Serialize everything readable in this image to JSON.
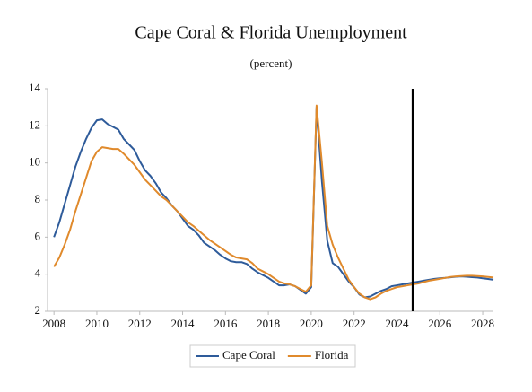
{
  "chart_data": {
    "type": "line",
    "title": "Cape Coral & Florida Unemployment",
    "subtitle": "(percent)",
    "x": [
      2008,
      2008.25,
      2008.5,
      2008.75,
      2009,
      2009.25,
      2009.5,
      2009.75,
      2010,
      2010.25,
      2010.5,
      2010.75,
      2011,
      2011.25,
      2011.5,
      2011.75,
      2012,
      2012.25,
      2012.5,
      2012.75,
      2013,
      2013.25,
      2013.5,
      2013.75,
      2014,
      2014.25,
      2014.5,
      2014.75,
      2015,
      2015.25,
      2015.5,
      2015.75,
      2016,
      2016.25,
      2016.5,
      2016.75,
      2017,
      2017.25,
      2017.5,
      2017.75,
      2018,
      2018.25,
      2018.5,
      2018.75,
      2019,
      2019.25,
      2019.5,
      2019.75,
      2020,
      2020.25,
      2020.5,
      2020.75,
      2021,
      2021.25,
      2021.5,
      2021.75,
      2022,
      2022.25,
      2022.5,
      2022.75,
      2023,
      2023.25,
      2023.5,
      2023.75,
      2024,
      2024.25,
      2024.5,
      2024.75,
      2025,
      2025.25,
      2025.5,
      2025.75,
      2026,
      2026.25,
      2026.5,
      2026.75,
      2027,
      2027.25,
      2027.5,
      2027.75,
      2028,
      2028.25,
      2028.5
    ],
    "series": [
      {
        "name": "Cape Coral",
        "color": "#2e5b9a",
        "values": [
          6.0,
          6.8,
          7.8,
          8.8,
          9.8,
          10.6,
          11.3,
          11.9,
          12.3,
          12.35,
          12.1,
          11.95,
          11.8,
          11.3,
          11.0,
          10.7,
          10.1,
          9.6,
          9.3,
          8.9,
          8.4,
          8.1,
          7.7,
          7.4,
          7.0,
          6.6,
          6.4,
          6.1,
          5.7,
          5.5,
          5.3,
          5.05,
          4.85,
          4.7,
          4.65,
          4.65,
          4.55,
          4.3,
          4.1,
          3.95,
          3.8,
          3.6,
          3.4,
          3.4,
          3.45,
          3.35,
          3.15,
          2.95,
          3.3,
          13.0,
          9.0,
          5.8,
          4.6,
          4.4,
          4.0,
          3.6,
          3.3,
          2.9,
          2.75,
          2.8,
          2.95,
          3.1,
          3.2,
          3.35,
          3.4,
          3.45,
          3.5,
          3.55,
          3.6,
          3.65,
          3.7,
          3.75,
          3.78,
          3.8,
          3.83,
          3.86,
          3.88,
          3.86,
          3.84,
          3.82,
          3.78,
          3.74,
          3.7
        ]
      },
      {
        "name": "Florida",
        "color": "#e08a2c",
        "values": [
          4.4,
          4.9,
          5.6,
          6.4,
          7.4,
          8.3,
          9.2,
          10.1,
          10.6,
          10.85,
          10.8,
          10.75,
          10.75,
          10.5,
          10.2,
          9.9,
          9.5,
          9.1,
          8.8,
          8.5,
          8.2,
          8.0,
          7.7,
          7.4,
          7.1,
          6.8,
          6.6,
          6.35,
          6.1,
          5.85,
          5.65,
          5.45,
          5.25,
          5.05,
          4.9,
          4.85,
          4.8,
          4.6,
          4.3,
          4.15,
          4.0,
          3.8,
          3.6,
          3.5,
          3.45,
          3.35,
          3.2,
          3.05,
          3.4,
          13.1,
          10.0,
          6.6,
          5.6,
          4.9,
          4.3,
          3.7,
          3.3,
          2.95,
          2.75,
          2.65,
          2.75,
          2.95,
          3.1,
          3.2,
          3.3,
          3.35,
          3.4,
          3.45,
          3.5,
          3.58,
          3.65,
          3.7,
          3.75,
          3.8,
          3.85,
          3.88,
          3.9,
          3.92,
          3.92,
          3.9,
          3.88,
          3.85,
          3.82
        ]
      }
    ],
    "xlim": [
      2007.7,
      2028.5
    ],
    "xticks": [
      2008,
      2010,
      2012,
      2014,
      2016,
      2018,
      2020,
      2022,
      2024,
      2026,
      2028
    ],
    "ylim": [
      2,
      14
    ],
    "yticks": [
      2,
      4,
      6,
      8,
      10,
      12,
      14
    ],
    "vertical_line_x": 2024.75,
    "legend": "bottom"
  }
}
